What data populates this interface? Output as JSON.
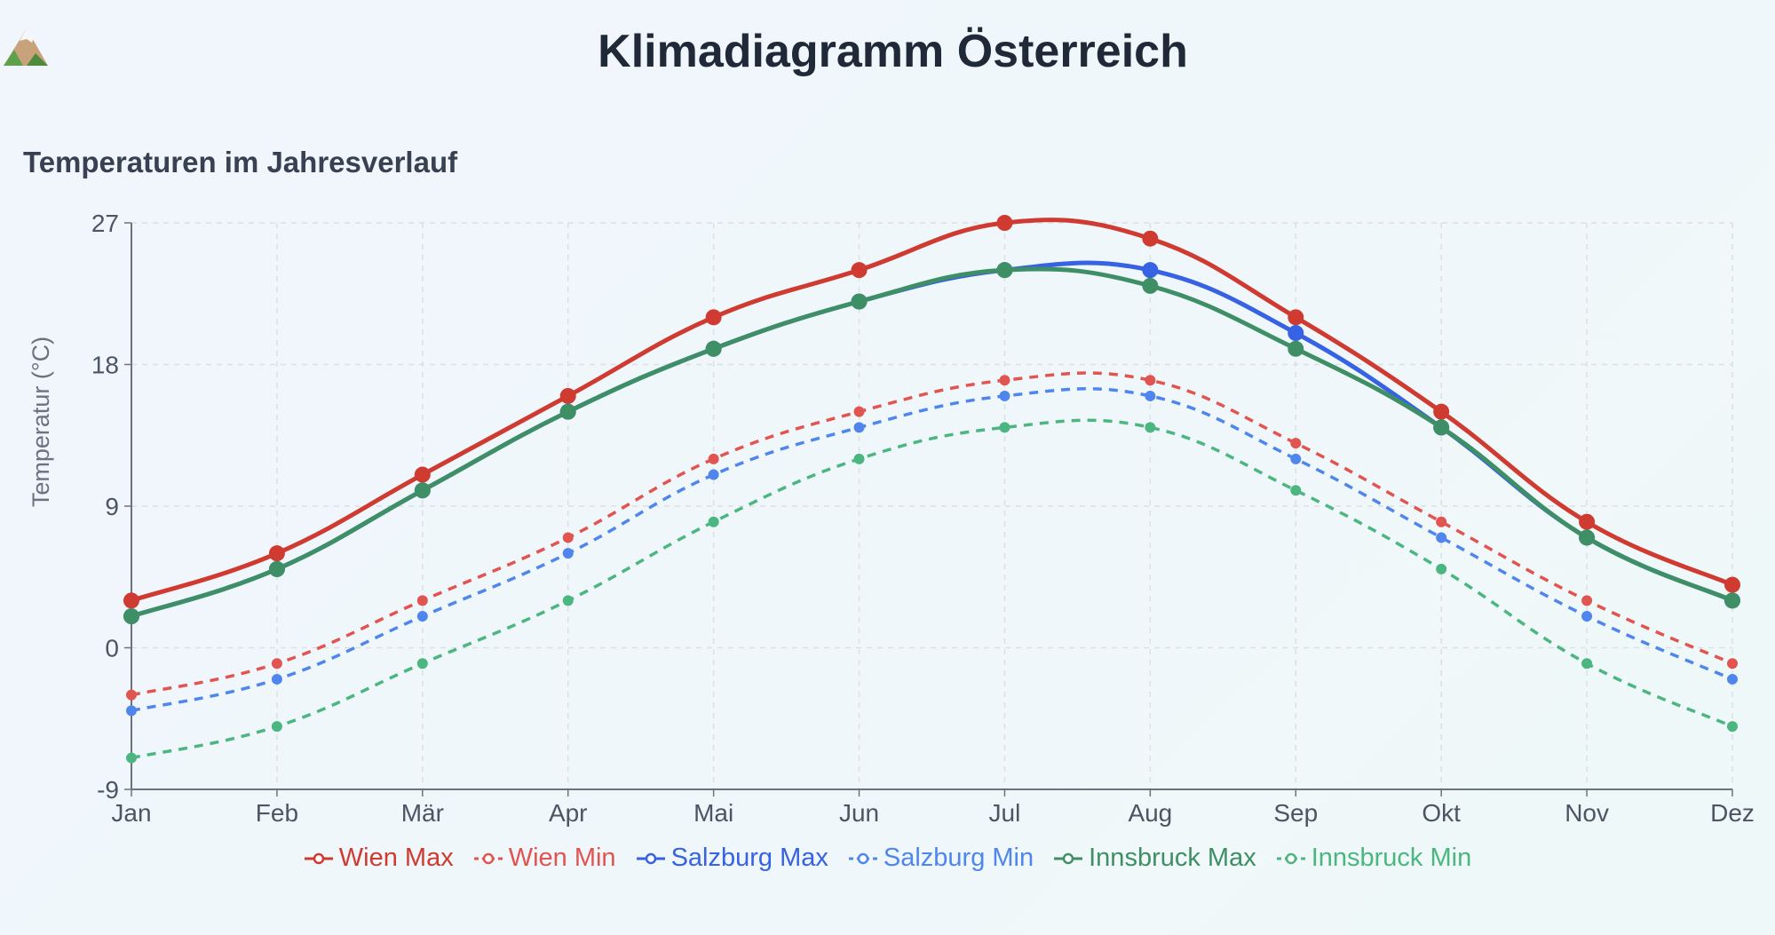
{
  "header": {
    "title": "Klimadiagramm Österreich",
    "icon": "mountain-icon"
  },
  "chart_section": {
    "title": "Temperaturen im Jahresverlauf"
  },
  "chart_data": {
    "type": "line",
    "title": "",
    "xlabel": "",
    "ylabel": "Temperatur (°C)",
    "ylim": [
      -9,
      27
    ],
    "yticks": [
      "27",
      "18",
      "9",
      "0",
      "-9"
    ],
    "ytick_values": [
      27,
      18,
      9,
      0,
      -9
    ],
    "grid": true,
    "legend_position": "bottom",
    "categories": [
      "Jan",
      "Feb",
      "Mär",
      "Apr",
      "Mai",
      "Jun",
      "Jul",
      "Aug",
      "Sep",
      "Okt",
      "Nov",
      "Dez"
    ],
    "series": [
      {
        "name": "Wien Max",
        "color": "#cf3a31",
        "dashed": false,
        "values": [
          3,
          6,
          11,
          16,
          21,
          24,
          27,
          26,
          21,
          15,
          8,
          4
        ]
      },
      {
        "name": "Wien Min",
        "color": "#e25450",
        "dashed": true,
        "values": [
          -3,
          -1,
          3,
          7,
          12,
          15,
          17,
          17,
          13,
          8,
          3,
          -1
        ]
      },
      {
        "name": "Salzburg Max",
        "color": "#3662e3",
        "dashed": false,
        "values": [
          2,
          5,
          10,
          15,
          19,
          22,
          24,
          24,
          20,
          14,
          7,
          3
        ]
      },
      {
        "name": "Salzburg Min",
        "color": "#4f86ee",
        "dashed": true,
        "values": [
          -4,
          -2,
          2,
          6,
          11,
          14,
          16,
          16,
          12,
          7,
          2,
          -2
        ]
      },
      {
        "name": "Innsbruck Max",
        "color": "#3f8f66",
        "dashed": false,
        "values": [
          2,
          5,
          10,
          15,
          19,
          22,
          24,
          23,
          19,
          14,
          7,
          3
        ]
      },
      {
        "name": "Innsbruck Min",
        "color": "#4cb680",
        "dashed": true,
        "values": [
          -7,
          -5,
          -1,
          3,
          8,
          12,
          14,
          14,
          10,
          5,
          -1,
          -5
        ]
      }
    ]
  }
}
